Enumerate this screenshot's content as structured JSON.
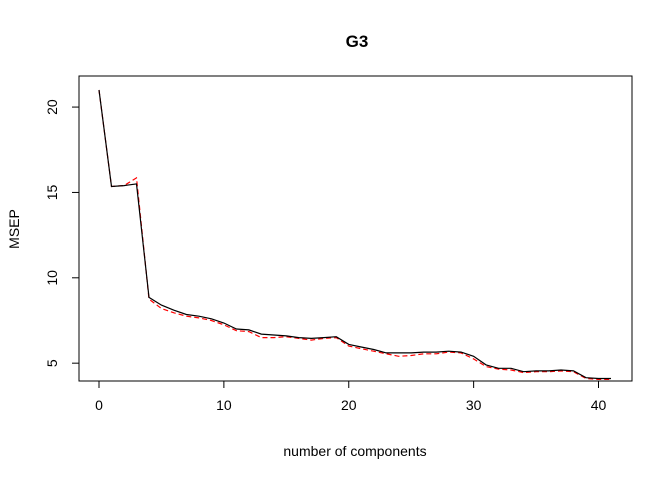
{
  "chart_data": {
    "type": "line",
    "title": "G3",
    "xlabel": "number of components",
    "ylabel": "MSEP",
    "xlim": [
      0,
      41
    ],
    "ylim": [
      4.6,
      21.0
    ],
    "x_ticks": [
      0,
      10,
      20,
      30,
      40
    ],
    "y_ticks": [
      5,
      10,
      15,
      20
    ],
    "grid": false,
    "legend": "none",
    "x": [
      0,
      1,
      2,
      3,
      4,
      5,
      6,
      7,
      8,
      9,
      10,
      11,
      12,
      13,
      14,
      15,
      16,
      17,
      18,
      19,
      20,
      21,
      22,
      23,
      24,
      25,
      26,
      27,
      28,
      29,
      30,
      31,
      32,
      33,
      34,
      35,
      36,
      37,
      38,
      39,
      40,
      41
    ],
    "series": [
      {
        "style": "solid",
        "color": "#000000",
        "values": [
          21.0,
          15.35,
          15.4,
          15.5,
          8.85,
          8.4,
          8.1,
          7.85,
          7.75,
          7.6,
          7.35,
          7.0,
          6.95,
          6.7,
          6.65,
          6.6,
          6.5,
          6.45,
          6.5,
          6.55,
          6.1,
          5.95,
          5.8,
          5.6,
          5.6,
          5.6,
          5.65,
          5.65,
          5.7,
          5.65,
          5.4,
          4.9,
          4.7,
          4.7,
          4.5,
          4.55,
          4.55,
          4.6,
          4.55,
          4.15,
          4.1,
          4.1
        ]
      },
      {
        "style": "dashed",
        "color": "#ff0000",
        "values": [
          21.0,
          15.35,
          15.4,
          15.85,
          8.75,
          8.2,
          7.95,
          7.75,
          7.65,
          7.5,
          7.25,
          6.9,
          6.85,
          6.5,
          6.5,
          6.55,
          6.45,
          6.35,
          6.45,
          6.5,
          6.0,
          5.85,
          5.7,
          5.55,
          5.4,
          5.45,
          5.55,
          5.55,
          5.65,
          5.6,
          5.25,
          4.8,
          4.65,
          4.6,
          4.45,
          4.5,
          4.5,
          4.55,
          4.5,
          4.1,
          4.05,
          4.05
        ]
      }
    ]
  }
}
